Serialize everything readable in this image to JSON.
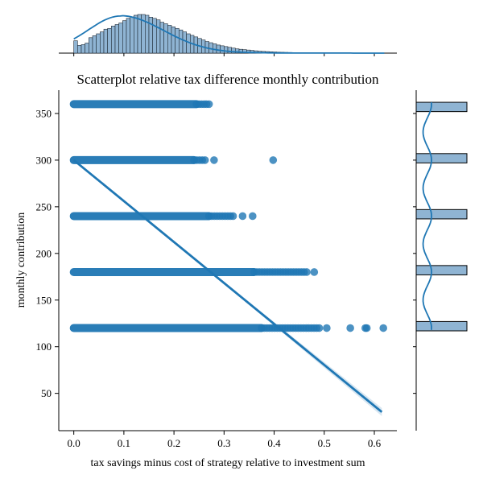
{
  "chart_data": {
    "type": "scatter",
    "title": "Scatterplot relative tax difference monthly contribution",
    "xlabel": "tax savings minus cost of strategy relative to investment sum",
    "ylabel": "monthly contribution",
    "xlim": [
      -0.03,
      0.645
    ],
    "ylim": [
      10,
      375
    ],
    "xticks": [
      "0.0",
      "0.1",
      "0.2",
      "0.3",
      "0.4",
      "0.5",
      "0.6"
    ],
    "yticks": [
      "50",
      "100",
      "150",
      "200",
      "250",
      "300",
      "350"
    ],
    "xtick_values": [
      0,
      0.1,
      0.2,
      0.3,
      0.4,
      0.5,
      0.6
    ],
    "ytick_values": [
      50,
      100,
      150,
      200,
      250,
      300,
      350
    ],
    "grid": false,
    "colors": {
      "main": "#1f77b4",
      "hist_fill": "#8fb4d3",
      "hist_edge": "#1f2a36"
    },
    "series": [
      {
        "type": "dense_band",
        "y": 360,
        "x_dense_end": 0.245,
        "x_sparse_end": 0.27,
        "outliers": []
      },
      {
        "type": "dense_band",
        "y": 300,
        "x_dense_end": 0.24,
        "x_sparse_end": 0.262,
        "outliers": [
          0.28,
          0.398
        ]
      },
      {
        "type": "dense_band",
        "y": 240,
        "x_dense_end": 0.27,
        "x_sparse_end": 0.318,
        "outliers": [
          0.337,
          0.357
        ]
      },
      {
        "type": "dense_band",
        "y": 180,
        "x_dense_end": 0.36,
        "x_sparse_end": 0.465,
        "outliers": [
          0.48
        ]
      },
      {
        "type": "dense_band",
        "y": 120,
        "x_dense_end": 0.375,
        "x_sparse_end": 0.49,
        "outliers": [
          0.505,
          0.552,
          0.582,
          0.585,
          0.618
        ]
      }
    ],
    "regression_line": {
      "x": [
        0.0,
        0.615
      ],
      "y": [
        300,
        30
      ]
    },
    "marginal_x_hist": {
      "bin_width": 0.0075,
      "bin_start": 0.0,
      "x_max": 0.62,
      "kde_peak_x": 0.095,
      "counts": [
        0.32,
        0.2,
        0.22,
        0.26,
        0.4,
        0.45,
        0.5,
        0.55,
        0.62,
        0.64,
        0.7,
        0.74,
        0.78,
        0.84,
        0.9,
        0.94,
        0.98,
        1.0,
        1.0,
        0.98,
        0.93,
        0.9,
        0.86,
        0.8,
        0.76,
        0.72,
        0.68,
        0.64,
        0.6,
        0.55,
        0.5,
        0.46,
        0.42,
        0.38,
        0.34,
        0.3,
        0.27,
        0.24,
        0.21,
        0.19,
        0.17,
        0.15,
        0.13,
        0.11,
        0.1,
        0.09,
        0.08,
        0.07,
        0.06,
        0.05,
        0.045,
        0.04,
        0.035,
        0.03,
        0.025,
        0.022,
        0.019,
        0.016,
        0.014,
        0.012,
        0.01,
        0.009,
        0.008,
        0.007,
        0.006,
        0.005,
        0.004,
        0.003,
        0.003,
        0.002
      ]
    },
    "marginal_y_hist": {
      "bins": [
        {
          "y_low": 117,
          "y_high": 127,
          "count": 1.0
        },
        {
          "y_low": 177,
          "y_high": 187,
          "count": 1.0
        },
        {
          "y_low": 237,
          "y_high": 247,
          "count": 1.0
        },
        {
          "y_low": 297,
          "y_high": 307,
          "count": 1.0
        },
        {
          "y_low": 352,
          "y_high": 362,
          "count": 1.0
        }
      ]
    }
  }
}
